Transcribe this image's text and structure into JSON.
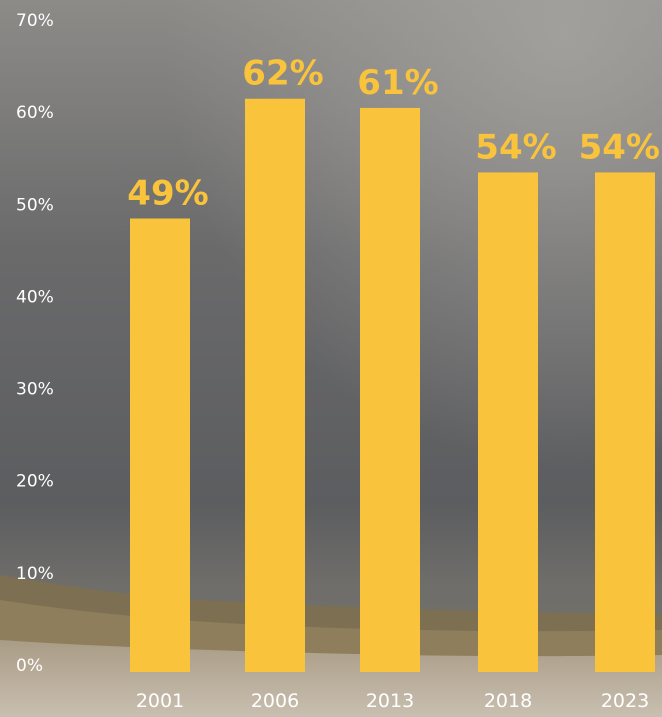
{
  "colors": {
    "bar": "#f9c33b",
    "label": "#f9c33b",
    "text": "#ffffff",
    "sky_top": "#8a8987",
    "sky_mid": "#5f6062",
    "sand": "#b9ad9a"
  },
  "chart_data": {
    "type": "bar",
    "categories": [
      "2001",
      "2006",
      "2013",
      "2018",
      "2023"
    ],
    "values": [
      49,
      62,
      61,
      54,
      54
    ],
    "data_labels": [
      "49%",
      "62%",
      "61%",
      "54%",
      "54%"
    ],
    "ylim": [
      0,
      70
    ],
    "yticks": [
      0,
      10,
      20,
      30,
      40,
      50,
      60,
      70
    ],
    "ytick_labels": [
      "0%",
      "10%",
      "20%",
      "30%",
      "40%",
      "50%",
      "60%",
      "70%"
    ],
    "title": "",
    "xlabel": "",
    "ylabel": "",
    "grid": false
  }
}
